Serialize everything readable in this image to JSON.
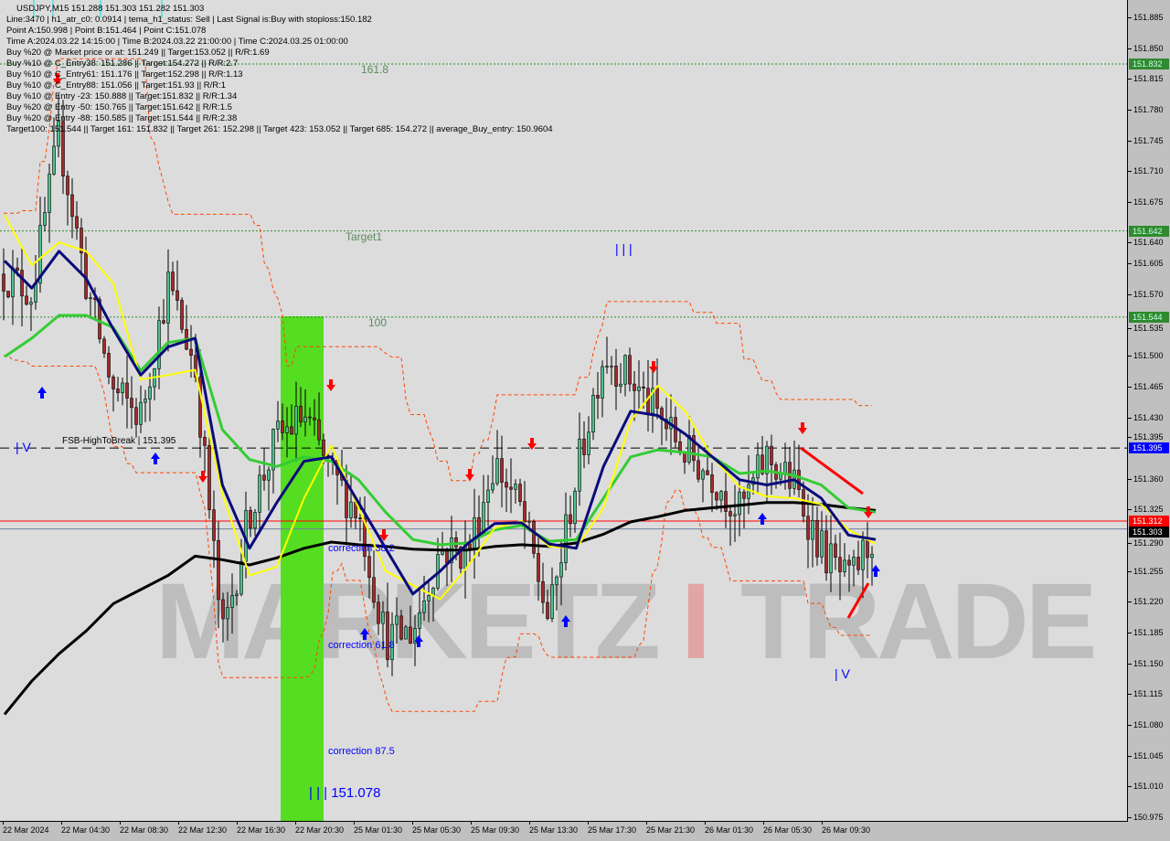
{
  "header": {
    "symbol_line": "USDJPY,M15  151.288 151.303 151.282 151.303",
    "info_lines": [
      "Line:3470 | h1_atr_c0: 0.0914 | tema_h1_status: Sell | Last Signal is:Buy with stoploss:150.182",
      "Point A:150.998 | Point B:151.464 | Point C:151.078",
      "Time A:2024.03.22 14:15:00 | Time B:2024.03.22 21:00:00 | Time C:2024.03.25 01:00:00",
      "Buy %20 @ Market price or at: 151.249 || Target:153.052 || R/R:1.69",
      "Buy %10 @ C_Entry38: 151.286 || Target:154.272 || R/R:2.7",
      "Buy %10 @ C_Entry61: 151.176 || Target:152.298 || R/R:1.13",
      "Buy %10 @ C_Entry88: 151.056 || Target:151.93 || R/R:1",
      "Buy %10 @ Entry -23: 150.888 || Target:151.832 || R/R:1.34",
      "Buy %20 @ Entry -50: 150.765 || Target:151.642 || R/R:1.5",
      "Buy %20 @ Entry -88: 150.585 || Target:151.544 || R/R:2.38",
      "Target100: 151.544 || Target 161: 151.832 || Target 261: 152.298 || Target 423: 153.052 || Target 685: 154.272 || average_Buy_entry: 150.9604"
    ]
  },
  "annotations": {
    "fib_161": "161.8",
    "target1": "Target1",
    "fib_100": "100",
    "fsb": "FSB-HighToBreak | 151.395",
    "corr38": "correction 38.2",
    "corr61": "correction 61.8",
    "corr87": "correction 87.5",
    "pointc": "| | | 151.078",
    "wave3": "| | |",
    "wave4": "| V",
    "wave4_left": "| V"
  },
  "watermark": {
    "text_left": "MARKETZ",
    "text_i": "I",
    "text_right": "TRADE"
  },
  "colors": {
    "background": "#dcdcdc",
    "bull": "#4fc08d",
    "bear": "#a52a2a",
    "ma_black": "#000000",
    "ma_navy": "#0a0a7a",
    "ma_green": "#33cc33",
    "ma_yellow": "#ffff00",
    "envelope": "#ff4500",
    "target_line": "#2e8b2e",
    "fsb_line": "#0000ff",
    "signal_red": "#ff0000",
    "zone": "#55dd22"
  },
  "chart_data": {
    "type": "candlestick",
    "symbol": "USDJPY",
    "timeframe": "M15",
    "ylim": [
      150.975,
      151.885
    ],
    "y_ticks": [
      "151.885",
      "151.850",
      "151.815",
      "151.780",
      "151.745",
      "151.710",
      "151.675",
      "151.640",
      "151.605",
      "151.570",
      "151.535",
      "151.500",
      "151.465",
      "151.430",
      "151.395",
      "151.360",
      "151.325",
      "151.290",
      "151.255",
      "151.220",
      "151.185",
      "151.150",
      "151.115",
      "151.080",
      "151.045",
      "151.010",
      "150.975"
    ],
    "x_ticks": [
      "22 Mar 2024",
      "22 Mar 04:30",
      "22 Mar 08:30",
      "22 Mar 12:30",
      "22 Mar 16:30",
      "22 Mar 20:30",
      "25 Mar 01:30",
      "25 Mar 05:30",
      "25 Mar 09:30",
      "25 Mar 13:30",
      "25 Mar 17:30",
      "25 Mar 21:30",
      "26 Mar 01:30",
      "26 Mar 05:30",
      "26 Mar 09:30"
    ],
    "price_path": [
      151.593,
      151.572,
      151.749,
      151.582,
      151.458,
      151.432,
      151.582,
      151.489,
      151.177,
      151.322,
      151.406,
      151.432,
      151.364,
      151.322,
      151.177,
      151.187,
      151.281,
      151.276,
      151.38,
      151.322,
      151.198,
      151.364,
      151.504,
      151.473,
      151.432,
      151.39,
      151.364,
      151.322,
      151.385,
      151.353,
      151.281,
      151.239,
      151.303
    ],
    "ma_series": [
      {
        "key": "black",
        "values": [
          151.092,
          151.13,
          151.161,
          151.187,
          151.218,
          151.234,
          151.25,
          151.272,
          151.268,
          151.262,
          151.27,
          151.281,
          151.288,
          151.285,
          151.283,
          151.28,
          151.279,
          151.279,
          151.283,
          151.285,
          151.283,
          151.287,
          151.297,
          151.311,
          151.317,
          151.324,
          151.327,
          151.33,
          151.333,
          151.333,
          151.331,
          151.327,
          151.324
        ]
      },
      {
        "key": "green",
        "values": [
          151.499,
          151.52,
          151.546,
          151.546,
          151.532,
          151.483,
          151.515,
          151.52,
          151.416,
          151.382,
          151.374,
          151.385,
          151.38,
          151.359,
          151.322,
          151.291,
          151.285,
          151.287,
          151.302,
          151.307,
          151.289,
          151.291,
          151.338,
          151.385,
          151.393,
          151.39,
          151.385,
          151.366,
          151.369,
          151.364,
          151.353,
          151.327,
          151.322
        ]
      },
      {
        "key": "yellow",
        "values": [
          151.66,
          151.603,
          151.629,
          151.619,
          151.582,
          151.473,
          151.478,
          151.484,
          151.343,
          151.25,
          151.26,
          151.338,
          151.398,
          151.327,
          151.255,
          151.239,
          151.223,
          151.26,
          151.304,
          151.312,
          151.283,
          151.281,
          151.327,
          151.426,
          151.466,
          151.437,
          151.385,
          151.351,
          151.34,
          151.338,
          151.331,
          151.302,
          151.286
        ]
      },
      {
        "key": "navy",
        "values": [
          151.608,
          151.577,
          151.619,
          151.588,
          151.53,
          151.478,
          151.51,
          151.52,
          151.353,
          151.281,
          151.333,
          151.38,
          151.385,
          151.333,
          151.281,
          151.229,
          151.255,
          151.286,
          151.309,
          151.31,
          151.286,
          151.281,
          151.374,
          151.437,
          151.432,
          151.411,
          151.385,
          151.359,
          151.353,
          151.359,
          151.338,
          151.296,
          151.291
        ]
      }
    ],
    "levels": [
      {
        "price": 151.832,
        "label": "151.832",
        "style": "target"
      },
      {
        "price": 151.642,
        "label": "151.642",
        "style": "target"
      },
      {
        "price": 151.544,
        "label": "151.544",
        "style": "target"
      },
      {
        "price": 151.395,
        "label": "151.395",
        "style": "fsb"
      },
      {
        "price": 151.312,
        "label": "151.312",
        "style": "ask"
      },
      {
        "price": 151.303,
        "label": "151.303",
        "style": "bid"
      }
    ],
    "last_price": "151.303"
  }
}
